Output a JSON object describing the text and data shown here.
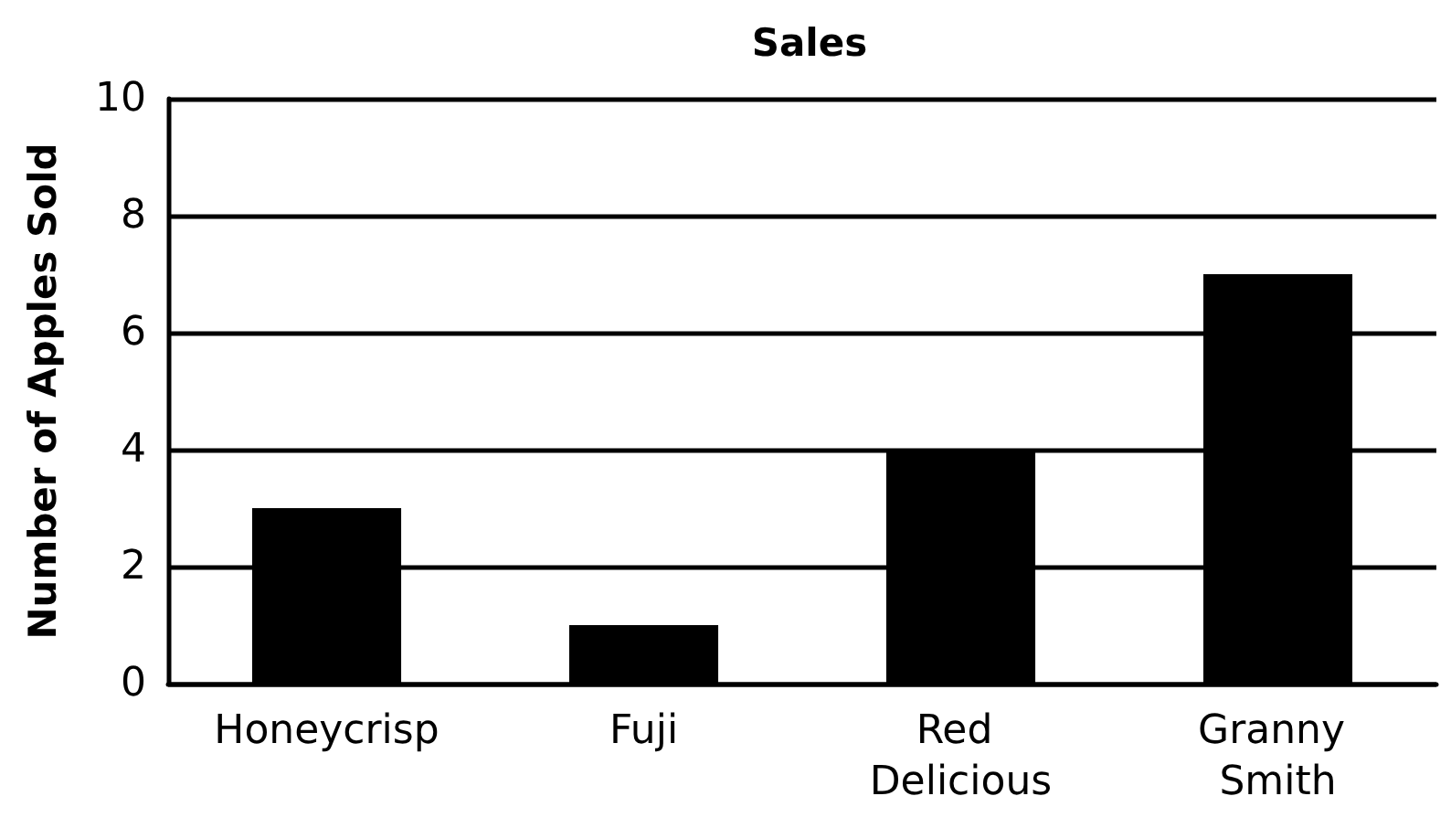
{
  "chart_data": {
    "type": "bar",
    "title": "Sales",
    "ylabel": "Number of Apples Sold",
    "categories": [
      "Honeycrisp",
      "Fuji",
      "Red Delicious",
      "Granny Smith"
    ],
    "values": [
      3,
      1,
      4,
      7
    ],
    "color": "#000000",
    "ylim": [
      0,
      10
    ],
    "yticks": [
      0,
      2,
      4,
      6,
      8,
      10
    ],
    "grid": "y"
  }
}
